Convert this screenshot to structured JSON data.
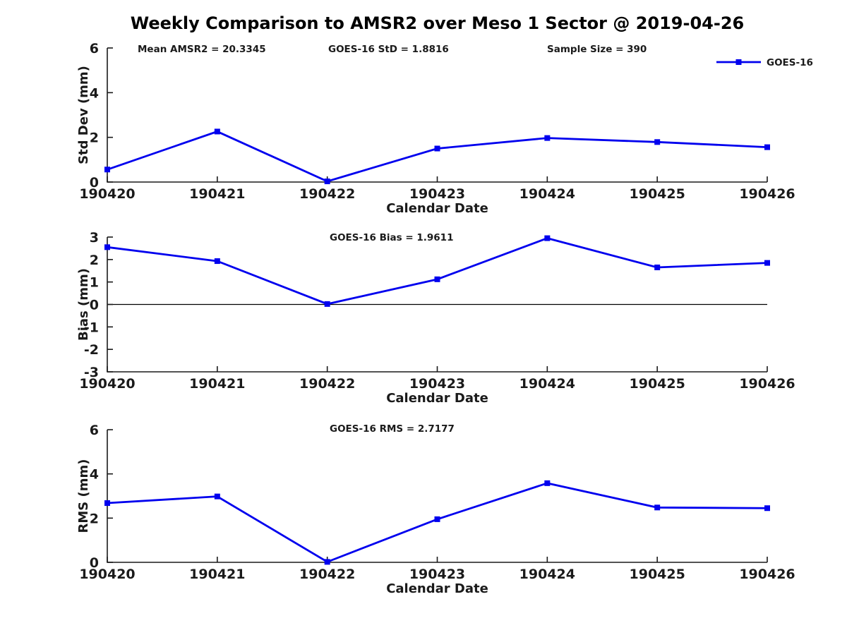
{
  "title": "Weekly Comparison to AMSR2 over Meso 1 Sector @ 2019-04-26",
  "accent_color": "#0000EE",
  "axis_color": "#1a1a1a",
  "chart_data": [
    {
      "type": "line",
      "ylabel": "Std Dev (mm)",
      "xlabel": "Calendar Date",
      "ylim": [
        0,
        6
      ],
      "yticks": [
        0,
        2,
        4,
        6
      ],
      "categories": [
        "190420",
        "190421",
        "190422",
        "190423",
        "190424",
        "190425",
        "190426"
      ],
      "series": [
        {
          "name": "GOES-16",
          "color": "#0000EE",
          "marker": "square",
          "values": [
            0.56,
            2.26,
            0.03,
            1.5,
            1.97,
            1.79,
            1.56
          ]
        }
      ],
      "annotations": [
        "Mean AMSR2 = 20.3345",
        "GOES-16 StD = 1.8816",
        "Sample Size = 390"
      ],
      "legend": {
        "show": true,
        "label": "GOES-16",
        "position": "top-right"
      },
      "zero_line": false,
      "grid": false
    },
    {
      "type": "line",
      "ylabel": "Bias (mm)",
      "xlabel": "Calendar Date",
      "ylim": [
        -3,
        3
      ],
      "yticks": [
        -3,
        -2,
        -1,
        0,
        1,
        2,
        3
      ],
      "categories": [
        "190420",
        "190421",
        "190422",
        "190423",
        "190424",
        "190425",
        "190426"
      ],
      "series": [
        {
          "name": "GOES-16",
          "color": "#0000EE",
          "marker": "square",
          "values": [
            2.55,
            1.93,
            0.02,
            1.12,
            2.95,
            1.65,
            1.85
          ]
        }
      ],
      "annotations": [
        "GOES-16 Bias  = 1.9611"
      ],
      "legend": {
        "show": false
      },
      "zero_line": true,
      "grid": false
    },
    {
      "type": "line",
      "ylabel": "RMS (mm)",
      "xlabel": "Calendar Date",
      "ylim": [
        0,
        6
      ],
      "yticks": [
        0,
        2,
        4,
        6
      ],
      "categories": [
        "190420",
        "190421",
        "190422",
        "190423",
        "190424",
        "190425",
        "190426"
      ],
      "series": [
        {
          "name": "GOES-16",
          "color": "#0000EE",
          "marker": "square",
          "values": [
            2.68,
            2.98,
            0.02,
            1.95,
            3.58,
            2.48,
            2.45
          ]
        }
      ],
      "annotations": [
        "GOES-16 RMS = 2.7177"
      ],
      "legend": {
        "show": false
      },
      "zero_line": false,
      "grid": false
    }
  ]
}
